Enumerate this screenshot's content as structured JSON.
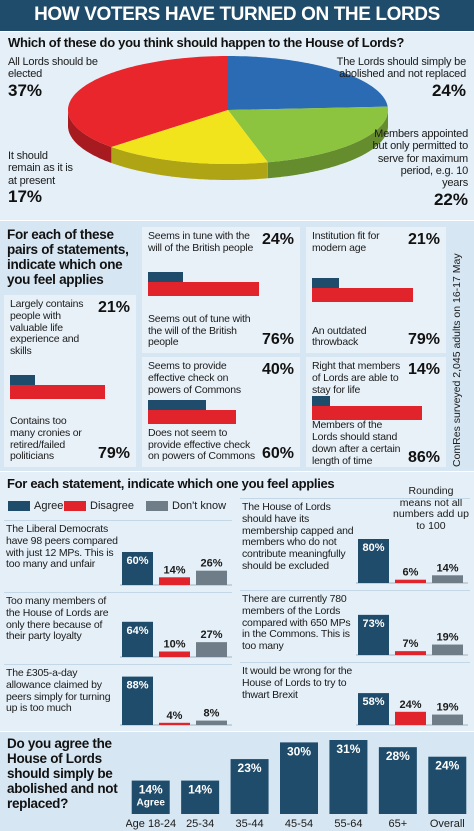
{
  "title": "HOW VOTERS HAVE TURNED ON THE LORDS",
  "chart_data": [
    {
      "type": "pie",
      "title": "Which of these do you think should happen to the House of Lords?",
      "categories": [
        "All Lords should be elected",
        "The Lords should simply be abolished and not replaced",
        "Members appointed but only permitted to serve for maximum period, e.g. 10 years",
        "It should remain as it is at present"
      ],
      "values": [
        37,
        24,
        22,
        17
      ],
      "value_labels": [
        "37%",
        "24%",
        "22%",
        "17%"
      ],
      "colors": [
        "#e8262c",
        "#2a6bb3",
        "#8cc43f",
        "#f2e41c"
      ]
    },
    {
      "type": "paired-bar",
      "title": "For each of these pairs of statements, indicate which one you feel applies",
      "source": "ComRes surveyed 2,045 adults on 16-17 May",
      "colors": [
        "#1f4c6b",
        "#e1242b"
      ],
      "panels": [
        {
          "categories": [
            "Seems in tune with the will of the British people",
            "Seems out of tune with the will of the British people"
          ],
          "values": [
            24,
            76
          ],
          "value_labels": [
            "24%",
            "76%"
          ]
        },
        {
          "categories": [
            "Institution fit for modern age",
            "An outdated throwback"
          ],
          "values": [
            21,
            79
          ],
          "value_labels": [
            "21%",
            "79%"
          ]
        },
        {
          "categories": [
            "Largely contains people with valuable life experience and skills",
            "Contains too many cronies or retired/failed politicians"
          ],
          "values": [
            21,
            79
          ],
          "value_labels": [
            "21%",
            "79%"
          ]
        },
        {
          "categories": [
            "Seems to provide effective check on powers of Commons",
            "Does not seem to provide effective check on powers of Commons"
          ],
          "values": [
            40,
            60
          ],
          "value_labels": [
            "40%",
            "60%"
          ]
        },
        {
          "categories": [
            "Right that members of Lords are able to stay for life",
            "Members of the Lords should stand down after a certain length of time"
          ],
          "values": [
            14,
            86
          ],
          "value_labels": [
            "14%",
            "86%"
          ]
        }
      ]
    },
    {
      "type": "grouped-bar",
      "title": "For each statement, indicate which one you feel applies",
      "note": "Rounding means not all numbers add up to 100",
      "categories": [
        "The Liberal Democrats have 98 peers compared with just 12 MPs. This is too many and unfair",
        "Too many members of the House of Lords are only there because of their party loyalty",
        "The £305-a-day allowance claimed by peers simply for turning up is too much",
        "The House of Lords should have its membership capped and members who do not contribute meaningfully should be excluded",
        "There are currently 780 members of the Lords compared with 650 MPs in the Commons. This is too many",
        "It would be wrong for the House of Lords to try to thwart Brexit"
      ],
      "series": [
        {
          "name": "Agree",
          "color": "#1f4c6b",
          "values": [
            60,
            64,
            88,
            80,
            73,
            58
          ],
          "value_labels": [
            "60%",
            "64%",
            "88%",
            "80%",
            "73%",
            "58%"
          ]
        },
        {
          "name": "Disagree",
          "color": "#e1242b",
          "values": [
            14,
            10,
            4,
            6,
            7,
            24
          ],
          "value_labels": [
            "14%",
            "10%",
            "4%",
            "6%",
            "7%",
            "24%"
          ]
        },
        {
          "name": "Don't know",
          "color": "#6e7d87",
          "values": [
            26,
            27,
            8,
            14,
            19,
            19
          ],
          "value_labels": [
            "26%",
            "27%",
            "8%",
            "14%",
            "19%",
            "19%"
          ]
        }
      ]
    },
    {
      "type": "bar",
      "title": "Do you agree the House of Lords should simply be abolished and not replaced?",
      "categories": [
        "Age 18-24",
        "25-34",
        "35-44",
        "45-54",
        "55-64",
        "65+",
        "Overall"
      ],
      "values": [
        14,
        14,
        23,
        30,
        31,
        28,
        24
      ],
      "value_labels": [
        "14%",
        "14%",
        "23%",
        "30%",
        "31%",
        "28%",
        "24%"
      ],
      "annotation": "Agree",
      "color": "#1f4c6b"
    }
  ]
}
